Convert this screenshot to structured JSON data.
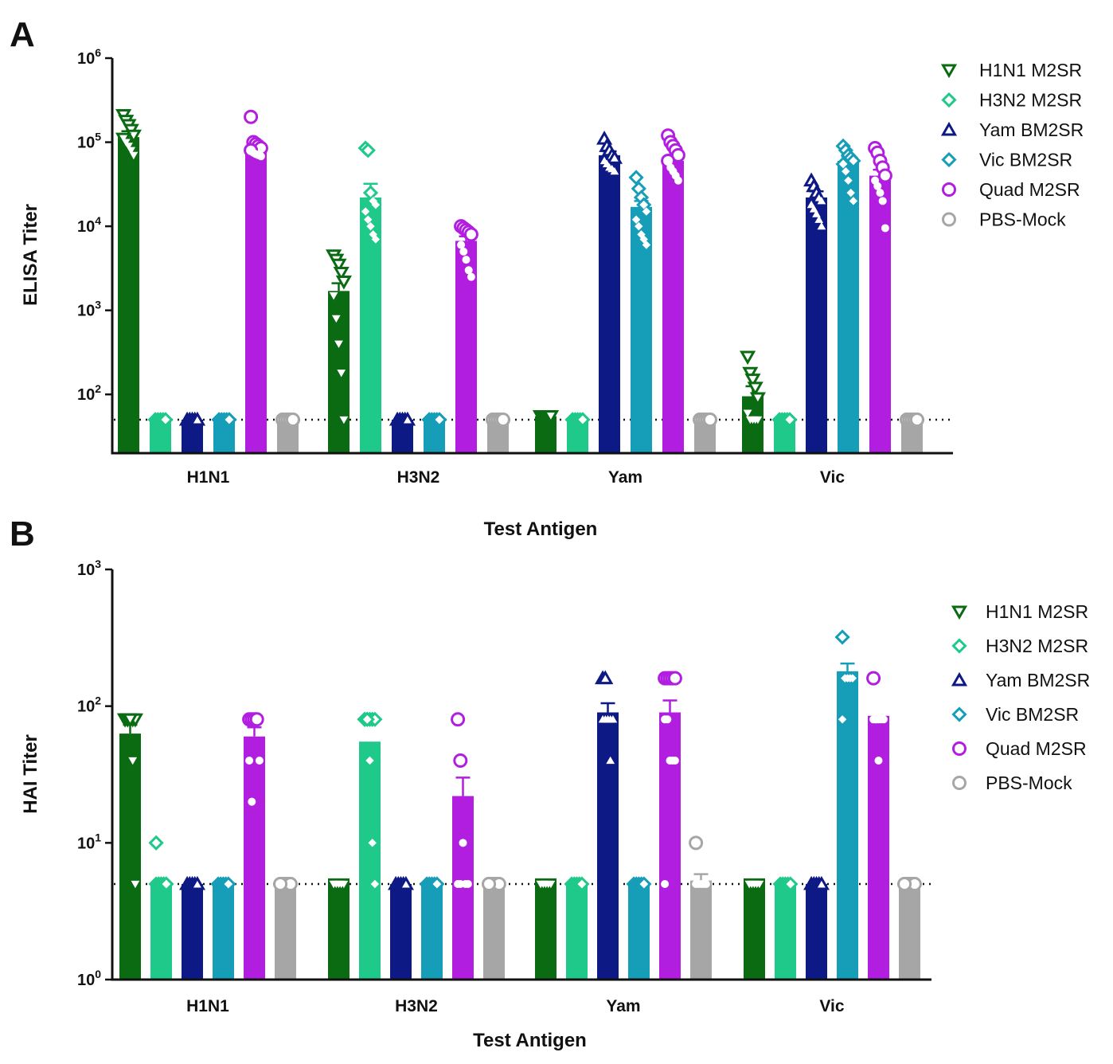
{
  "series_styles": [
    {
      "name": "H1N1 M2SR",
      "color": "#0b6b12",
      "marker": "triangle-down"
    },
    {
      "name": "H3N2 M2SR",
      "color": "#1fc98a",
      "marker": "diamond"
    },
    {
      "name": "Yam BM2SR",
      "color": "#0d1a85",
      "marker": "triangle-up"
    },
    {
      "name": "Vic BM2SR",
      "color": "#169db8",
      "marker": "diamond"
    },
    {
      "name": "Quad M2SR",
      "color": "#b21ee0",
      "marker": "circle"
    },
    {
      "name": "PBS-Mock",
      "color": "#a6a6a6",
      "marker": "circle"
    }
  ],
  "chart_data": [
    {
      "panel": "A",
      "type": "bar",
      "scale": "log",
      "title": "",
      "xlabel": "Test Antigen",
      "ylabel": "ELISA Titer",
      "ylim": [
        20,
        1000000
      ],
      "yticks": [
        100,
        1000,
        10000,
        100000,
        1000000
      ],
      "ytick_labels": [
        {
          "base": "10",
          "exp": "2"
        },
        {
          "base": "10",
          "exp": "3"
        },
        {
          "base": "10",
          "exp": "4"
        },
        {
          "base": "10",
          "exp": "5"
        },
        {
          "base": "10",
          "exp": "6"
        }
      ],
      "limit_of_detection": 50,
      "categories": [
        "H1N1",
        "H3N2",
        "Yam",
        "Vic"
      ],
      "legend": [
        "H1N1 M2SR",
        "H3N2 M2SR",
        "Yam BM2SR",
        "Vic BM2SR",
        "Quad M2SR",
        "PBS-Mock"
      ],
      "series": [
        {
          "name": "H1N1 M2SR",
          "values": [
            115000,
            1700,
            55,
            95
          ],
          "errors": [
            20000,
            400,
            0,
            30
          ],
          "points": [
            [
              210000,
              180000,
              160000,
              140000,
              120000,
              110000,
              100000,
              90000,
              80000,
              70000
            ],
            [
              4500,
              4000,
              3500,
              2800,
              2200,
              1500,
              800,
              400,
              180,
              50
            ],
            [
              55,
              55,
              55,
              55,
              55,
              55,
              55,
              55,
              55,
              55
            ],
            [
              280,
              180,
              150,
              120,
              90,
              60,
              50,
              50,
              50,
              50
            ]
          ]
        },
        {
          "name": "H3N2 M2SR",
          "values": [
            50,
            22000,
            50,
            50
          ],
          "errors": [
            0,
            10000,
            0,
            0
          ],
          "points": [
            [
              50,
              50,
              50,
              50,
              50,
              50,
              50,
              50,
              50,
              50
            ],
            [
              85000,
              80000,
              25000,
              20000,
              18000,
              15000,
              12000,
              10000,
              8000,
              7000
            ],
            [
              50,
              50,
              50,
              50,
              50,
              50,
              50,
              50,
              50,
              50
            ],
            [
              50,
              50,
              50,
              50,
              50,
              50,
              50,
              50,
              50,
              50
            ]
          ]
        },
        {
          "name": "Yam BM2SR",
          "values": [
            50,
            50,
            70000,
            22000
          ],
          "errors": [
            0,
            0,
            8000,
            4000
          ],
          "points": [
            [
              50,
              50,
              50,
              50,
              50,
              50,
              50,
              50,
              50,
              50
            ],
            [
              50,
              50,
              50,
              50,
              50,
              50,
              50,
              50,
              50,
              50
            ],
            [
              110000,
              90000,
              80000,
              70000,
              65000,
              60000,
              55000,
              50000,
              48000,
              45000
            ],
            [
              35000,
              30000,
              25000,
              22000,
              20000,
              18000,
              16000,
              14000,
              12000,
              10000
            ]
          ]
        },
        {
          "name": "Vic BM2SR",
          "values": [
            50,
            50,
            17000,
            60000
          ],
          "errors": [
            0,
            0,
            3000,
            8000
          ],
          "points": [
            [
              50,
              50,
              50,
              50,
              50,
              50,
              50,
              50,
              50,
              50
            ],
            [
              50,
              50,
              50,
              50,
              50,
              50,
              50,
              50,
              50,
              50
            ],
            [
              38000,
              28000,
              22000,
              18000,
              15000,
              12000,
              10000,
              8000,
              7000,
              6000
            ],
            [
              90000,
              80000,
              70000,
              65000,
              60000,
              55000,
              45000,
              35000,
              25000,
              20000
            ]
          ]
        },
        {
          "name": "Quad M2SR",
          "values": [
            82000,
            6700,
            60000,
            40000
          ],
          "errors": [
            8000,
            900,
            9000,
            7000
          ],
          "points": [
            [
              200000,
              100000,
              95000,
              90000,
              85000,
              80000,
              75000,
              72000,
              70000,
              68000
            ],
            [
              10000,
              9500,
              9000,
              8500,
              8000,
              6000,
              5000,
              4000,
              3000,
              2500
            ],
            [
              120000,
              100000,
              90000,
              80000,
              70000,
              60000,
              50000,
              45000,
              40000,
              35000
            ],
            [
              85000,
              75000,
              60000,
              50000,
              40000,
              35000,
              30000,
              25000,
              20000,
              9500
            ]
          ]
        },
        {
          "name": "PBS-Mock",
          "values": [
            50,
            50,
            50,
            50
          ],
          "errors": [
            0,
            0,
            0,
            0
          ],
          "points": [
            [
              50,
              50,
              50,
              50,
              50,
              50,
              50,
              50,
              50,
              50
            ],
            [
              50,
              50,
              50,
              50,
              50,
              50,
              50,
              50,
              50,
              50
            ],
            [
              50,
              50,
              50,
              50,
              50,
              50,
              50,
              50,
              50,
              50
            ],
            [
              50,
              50,
              50,
              50,
              50,
              50,
              50,
              50,
              50,
              50
            ]
          ]
        }
      ]
    },
    {
      "panel": "B",
      "type": "bar",
      "scale": "log",
      "title": "",
      "xlabel": "Test Antigen",
      "ylabel": "HAI Titer",
      "ylim": [
        1,
        1000
      ],
      "yticks": [
        1,
        10,
        100,
        1000
      ],
      "ytick_labels": [
        {
          "base": "10",
          "exp": "0"
        },
        {
          "base": "10",
          "exp": "1"
        },
        {
          "base": "10",
          "exp": "2"
        },
        {
          "base": "10",
          "exp": "3"
        }
      ],
      "limit_of_detection": 5,
      "categories": [
        "H1N1",
        "H3N2",
        "Yam",
        "Vic"
      ],
      "legend": [
        "H1N1 M2SR",
        "H3N2 M2SR",
        "Yam BM2SR",
        "Vic BM2SR",
        "Quad M2SR",
        "PBS-Mock"
      ],
      "series": [
        {
          "name": "H1N1 M2SR",
          "values": [
            63,
            5.5,
            5.5,
            5.5
          ],
          "errors": [
            10,
            0,
            0,
            0
          ],
          "points": [
            [
              80,
              80,
              80,
              80,
              80,
              80,
              80,
              80,
              40,
              5
            ],
            [
              5,
              5,
              5,
              5,
              5,
              5
            ],
            [
              5,
              5,
              5,
              5,
              5,
              5
            ],
            [
              5,
              5,
              5,
              5,
              5,
              5
            ]
          ]
        },
        {
          "name": "H3N2 M2SR",
          "values": [
            5,
            55,
            5,
            5
          ],
          "errors": [
            0,
            0,
            0,
            0
          ],
          "points": [
            [
              10,
              5,
              5,
              5,
              5,
              5,
              5,
              5,
              5,
              5
            ],
            [
              80,
              80,
              80,
              80,
              80,
              80,
              80,
              40,
              10,
              5
            ],
            [
              5,
              5,
              5,
              5,
              5
            ],
            [
              5,
              5,
              5,
              5,
              5
            ]
          ]
        },
        {
          "name": "Yam BM2SR",
          "values": [
            5,
            5,
            90,
            5
          ],
          "errors": [
            0,
            0,
            15,
            0
          ],
          "points": [
            [
              5,
              5,
              5,
              5,
              5
            ],
            [
              5,
              5,
              5,
              5,
              5
            ],
            [
              160,
              160,
              80,
              80,
              80,
              80,
              80,
              80,
              40
            ],
            [
              5,
              5,
              5,
              5,
              5
            ]
          ]
        },
        {
          "name": "Vic BM2SR",
          "values": [
            5,
            5,
            5,
            180
          ],
          "errors": [
            0,
            0,
            0,
            25
          ],
          "points": [
            [
              5,
              5,
              5,
              5,
              5
            ],
            [
              5,
              5,
              5,
              5,
              5
            ],
            [
              5,
              5,
              5,
              5,
              5
            ],
            [
              320,
              160,
              160,
              160,
              160,
              80
            ]
          ]
        },
        {
          "name": "Quad M2SR",
          "values": [
            60,
            22,
            90,
            85
          ],
          "errors": [
            10,
            8,
            20,
            0
          ],
          "points": [
            [
              80,
              80,
              80,
              80,
              40,
              40,
              20
            ],
            [
              80,
              40,
              10,
              5,
              5,
              5,
              5
            ],
            [
              160,
              160,
              160,
              160,
              160,
              80,
              80,
              40,
              40,
              40,
              5
            ],
            [
              160,
              80,
              80,
              80,
              80,
              80,
              80,
              40
            ]
          ]
        },
        {
          "name": "PBS-Mock",
          "values": [
            5,
            5,
            5.3,
            5
          ],
          "errors": [
            0,
            0,
            0.6,
            0
          ],
          "points": [
            [
              5,
              5,
              5,
              5,
              5,
              5
            ],
            [
              5,
              5,
              5,
              5,
              5,
              5
            ],
            [
              10,
              5,
              5,
              5,
              5,
              5
            ],
            [
              5,
              5,
              5,
              5,
              5,
              5
            ]
          ]
        }
      ]
    }
  ]
}
